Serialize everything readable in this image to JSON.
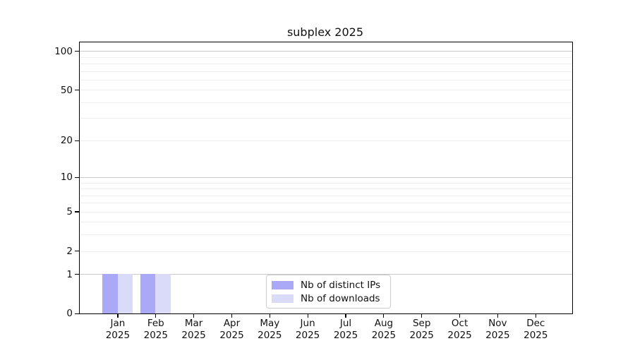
{
  "chart_data": {
    "type": "bar",
    "title": "subplex 2025",
    "categories": [
      "Jan 2025",
      "Feb 2025",
      "Mar 2025",
      "Apr 2025",
      "May 2025",
      "Jun 2025",
      "Jul 2025",
      "Aug 2025",
      "Sep 2025",
      "Oct 2025",
      "Nov 2025",
      "Dec 2025"
    ],
    "series": [
      {
        "name": "Nb of distinct IPs",
        "color": "#a9a9f7",
        "values": [
          1,
          1,
          0,
          0,
          0,
          0,
          0,
          0,
          0,
          0,
          0,
          0
        ]
      },
      {
        "name": "Nb of downloads",
        "color": "#dadaf9",
        "values": [
          1,
          1,
          0,
          0,
          0,
          0,
          0,
          0,
          0,
          0,
          0,
          0
        ]
      }
    ],
    "yscale": "log1p",
    "ylim": [
      0,
      116
    ],
    "yticks": [
      0,
      1,
      2,
      5,
      10,
      20,
      50,
      100
    ],
    "major_gridlines": [
      1,
      10,
      100
    ],
    "minor_gridlines": [
      2,
      3,
      4,
      5,
      6,
      7,
      8,
      9,
      20,
      30,
      40,
      50,
      60,
      70,
      80,
      90
    ],
    "grid": true,
    "legend_position": "lower center inside",
    "colors": {
      "bar_distinct_ips": "#a9a9f7",
      "bar_downloads": "#dadaf9",
      "major_grid": "#c9c9c9",
      "minor_grid": "#efefef",
      "spine": "#000000",
      "text": "#111111",
      "legend_border": "#cccccc",
      "legend_background": "#ffffff"
    }
  }
}
